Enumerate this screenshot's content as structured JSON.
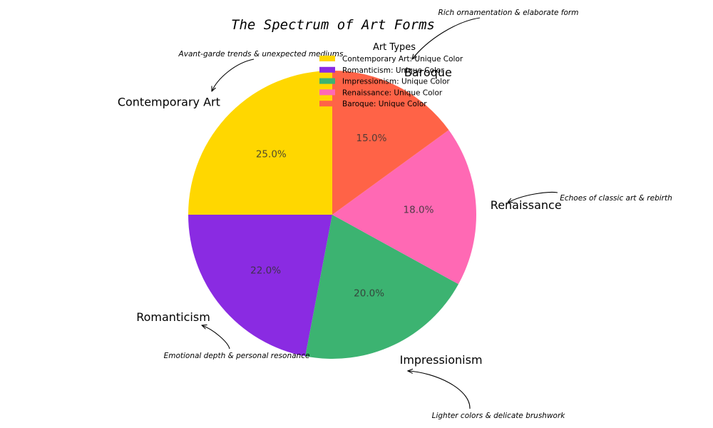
{
  "chart_data": {
    "type": "pie",
    "title": "The Spectrum of Art Forms",
    "start_angle_deg": 90,
    "direction": "counterclockwise",
    "categories": [
      "Contemporary Art",
      "Romanticism",
      "Impressionism",
      "Renaissance",
      "Baroque"
    ],
    "values": [
      25.0,
      22.0,
      20.0,
      18.0,
      15.0
    ],
    "percent_labels": [
      "25.0%",
      "22.0%",
      "20.0%",
      "18.0%",
      "15.0%"
    ],
    "colors": [
      "#FFD700",
      "#8A2BE2",
      "#3CB371",
      "#FF69B4",
      "#FF6347"
    ],
    "legend": {
      "title": "Art Types",
      "placement": "top-center",
      "entries": [
        "Contemporary Art: Unique Color",
        "Romanticism: Unique Color",
        "Impressionism: Unique Color",
        "Renaissance: Unique Color",
        "Baroque: Unique Color"
      ]
    },
    "annotations": [
      "Avant-garde trends & unexpected mediums",
      "Emotional depth & personal resonance",
      "Lighter colors & delicate brushwork",
      "Echoes of classic art & rebirth",
      "Rich ornamentation & elaborate form"
    ]
  }
}
